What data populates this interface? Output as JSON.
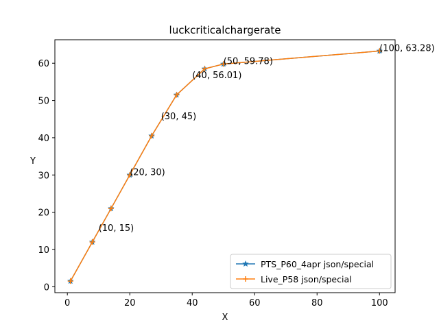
{
  "chart_data": {
    "type": "line",
    "title": "luckcriticalchargerate",
    "xlabel": "X",
    "ylabel": "Y",
    "xlim": [
      -4.0,
      105.0
    ],
    "ylim": [
      -1.6,
      66.3
    ],
    "xticks": [
      0,
      20,
      40,
      60,
      80,
      100
    ],
    "yticks": [
      0,
      10,
      20,
      30,
      40,
      50,
      60
    ],
    "grid": false,
    "legend_position": "lower right",
    "series": [
      {
        "name": "PTS_P60_4apr json/special",
        "color": "#1f77b4",
        "marker": "star",
        "x": [
          1,
          8,
          14,
          20,
          27,
          35,
          44,
          50,
          100
        ],
        "y": [
          1.5,
          12,
          21,
          30,
          40.5,
          51.5,
          58.5,
          59.78,
          63.28
        ]
      },
      {
        "name": "Live_P58 json/special",
        "color": "#ff7f0e",
        "marker": "plus",
        "x": [
          1,
          8,
          14,
          20,
          27,
          35,
          44,
          50,
          100
        ],
        "y": [
          1.5,
          12,
          21,
          30,
          40.5,
          51.5,
          58.5,
          59.78,
          63.28
        ]
      }
    ],
    "annotations": [
      {
        "text": "(10, 15)",
        "x": 10,
        "y": 15
      },
      {
        "text": "(20, 30)",
        "x": 20,
        "y": 30
      },
      {
        "text": "(30, 45)",
        "x": 30,
        "y": 45
      },
      {
        "text": "(40, 56.01)",
        "x": 40,
        "y": 56.01
      },
      {
        "text": "(50, 59.78)",
        "x": 50,
        "y": 59.78
      },
      {
        "text": "(100, 63.28)",
        "x": 100,
        "y": 63.28
      }
    ]
  }
}
